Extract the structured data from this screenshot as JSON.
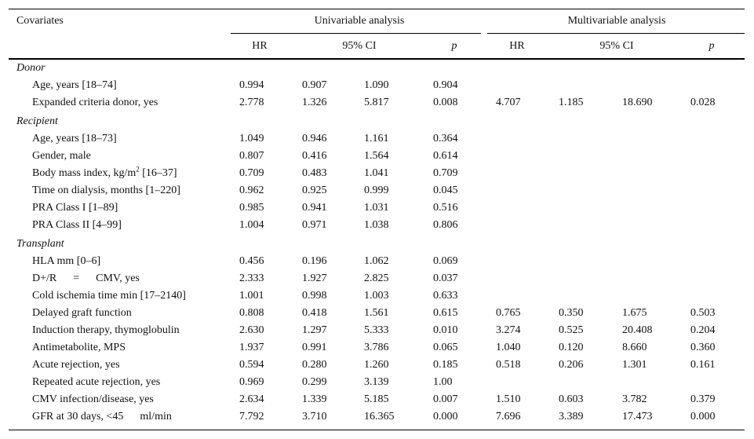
{
  "table": {
    "header": {
      "covariates": "Covariates",
      "univariable": "Univariable analysis",
      "multivariable": "Multivariable analysis",
      "columns": [
        "HR",
        "95% CI",
        "p",
        "HR",
        "95% CI",
        "p"
      ]
    },
    "sections": [
      {
        "title": "Donor",
        "rows": [
          {
            "label": "Age, years [18–74]",
            "uni": [
              "0.994",
              "0.907",
              "1.090",
              "0.904"
            ]
          },
          {
            "label": "Expanded criteria donor, yes",
            "uni": [
              "2.778",
              "1.326",
              "5.817",
              "0.008"
            ],
            "multi": [
              "4.707",
              "1.185",
              "18.690",
              "0.028"
            ]
          }
        ]
      },
      {
        "title": "Recipient",
        "rows": [
          {
            "label": "Age, years [18–73]",
            "uni": [
              "1.049",
              "0.946",
              "1.161",
              "0.364"
            ]
          },
          {
            "label": "Gender, male",
            "uni": [
              "0.807",
              "0.416",
              "1.564",
              "0.614"
            ]
          },
          {
            "label": "Body mass index, kg/m",
            "sup": "2",
            "label_end": " [16–37]",
            "uni": [
              "0.709",
              "0.483",
              "1.041",
              "0.709"
            ]
          },
          {
            "label": "Time on dialysis, months [1–220]",
            "uni": [
              "0.962",
              "0.925",
              "0.999",
              "0.045"
            ]
          },
          {
            "label": "PRA Class I [1–89]",
            "uni": [
              "0.985",
              "0.941",
              "1.031",
              "0.516"
            ]
          },
          {
            "label": "PRA Class II [4–99]",
            "uni": [
              "1.004",
              "0.971",
              "1.038",
              "0.806"
            ]
          }
        ]
      },
      {
        "title": "Transplant",
        "rows": [
          {
            "label": "HLA mm [0–6]",
            "uni": [
              "0.456",
              "0.196",
              "1.062",
              "0.069"
            ]
          },
          {
            "label": "D+/R      =      CMV, yes",
            "uni": [
              "2.333",
              "1.927",
              "2.825",
              "0.037"
            ]
          },
          {
            "label": "Cold ischemia time min [17–2140]",
            "uni": [
              "1.001",
              "0.998",
              "1.003",
              "0.633"
            ]
          },
          {
            "label": "Delayed graft function",
            "uni": [
              "0.808",
              "0.418",
              "1.561",
              "0.615"
            ],
            "multi": [
              "0.765",
              "0.350",
              "1.675",
              "0.503"
            ]
          },
          {
            "label": "Induction therapy, thymoglobulin",
            "uni": [
              "2.630",
              "1.297",
              "5.333",
              "0.010"
            ],
            "multi": [
              "3.274",
              "0.525",
              "20.408",
              "0.204"
            ]
          },
          {
            "label": "Antimetabolite, MPS",
            "uni": [
              "1.937",
              "0.991",
              "3.786",
              "0.065"
            ],
            "multi": [
              "1.040",
              "0.120",
              "8.660",
              "0.360"
            ]
          },
          {
            "label": "Acute rejection, yes",
            "uni": [
              "0.594",
              "0.280",
              "1.260",
              "0.185"
            ],
            "multi": [
              "0.518",
              "0.206",
              "1.301",
              "0.161"
            ]
          },
          {
            "label": "Repeated acute rejection, yes",
            "uni": [
              "0.969",
              "0.299",
              "3.139",
              "1.00"
            ]
          },
          {
            "label": "CMV infection/disease, yes",
            "uni": [
              "2.634",
              "1.339",
              "5.185",
              "0.007"
            ],
            "multi": [
              "1.510",
              "0.603",
              "3.782",
              "0.379"
            ]
          },
          {
            "label": "GFR at 30 days, <45      ml/min",
            "uni": [
              "7.792",
              "3.710",
              "16.365",
              "0.000"
            ],
            "multi": [
              "7.696",
              "3.389",
              "17.473",
              "0.000"
            ]
          }
        ]
      }
    ]
  }
}
